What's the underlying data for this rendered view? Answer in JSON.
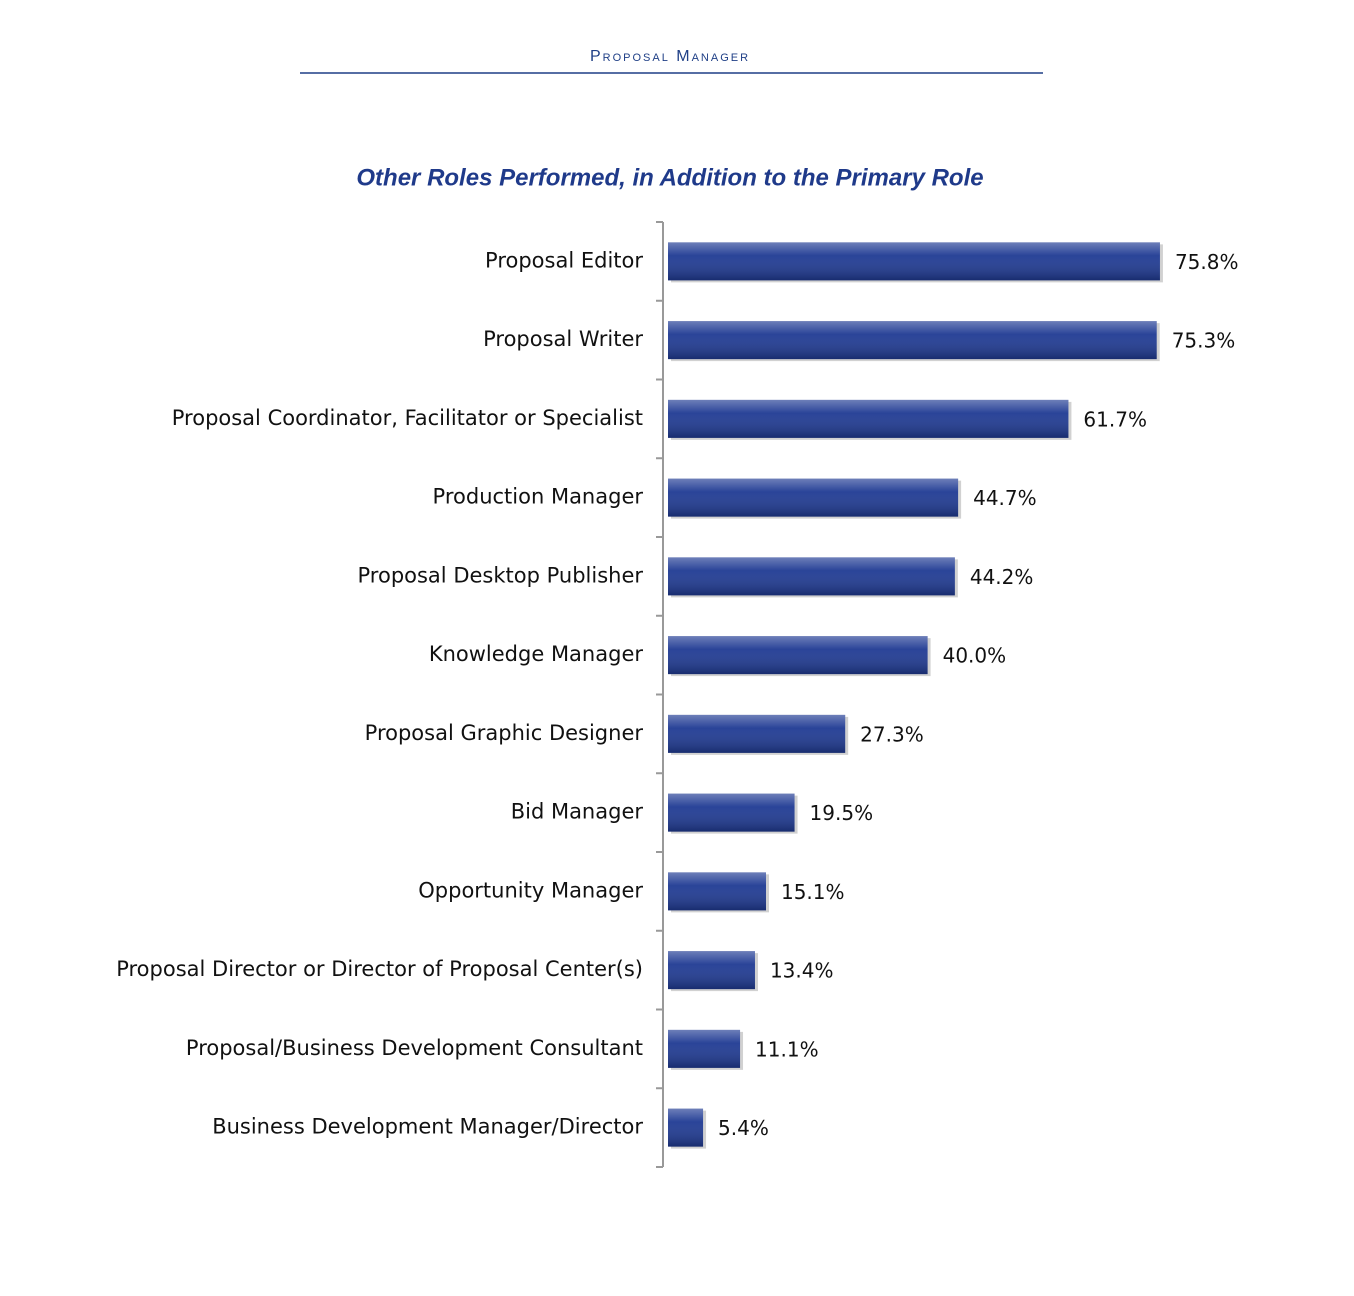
{
  "header": {
    "title": "Proposal Manager"
  },
  "chart_data": {
    "type": "bar",
    "orientation": "horizontal",
    "title": "Other Roles Performed, in Addition to the Primary Role",
    "categories": [
      "Proposal Editor",
      "Proposal Writer",
      "Proposal Coordinator, Facilitator or Specialist",
      "Production Manager",
      "Proposal Desktop Publisher",
      "Knowledge Manager",
      "Proposal Graphic Designer",
      "Bid Manager",
      "Opportunity Manager",
      "Proposal Director or Director of Proposal Center(s)",
      "Proposal/Business Development Consultant",
      "Business Development Manager/Director"
    ],
    "values": [
      75.8,
      75.3,
      61.7,
      44.7,
      44.2,
      40.0,
      27.3,
      19.5,
      15.1,
      13.4,
      11.1,
      5.4
    ],
    "value_labels": [
      "75.8%",
      "75.3%",
      "61.7%",
      "44.7%",
      "44.2%",
      "40.0%",
      "27.3%",
      "19.5%",
      "15.1%",
      "13.4%",
      "11.1%",
      "5.4%"
    ],
    "color": "#1f3a93",
    "xlim": [
      0,
      100
    ]
  }
}
